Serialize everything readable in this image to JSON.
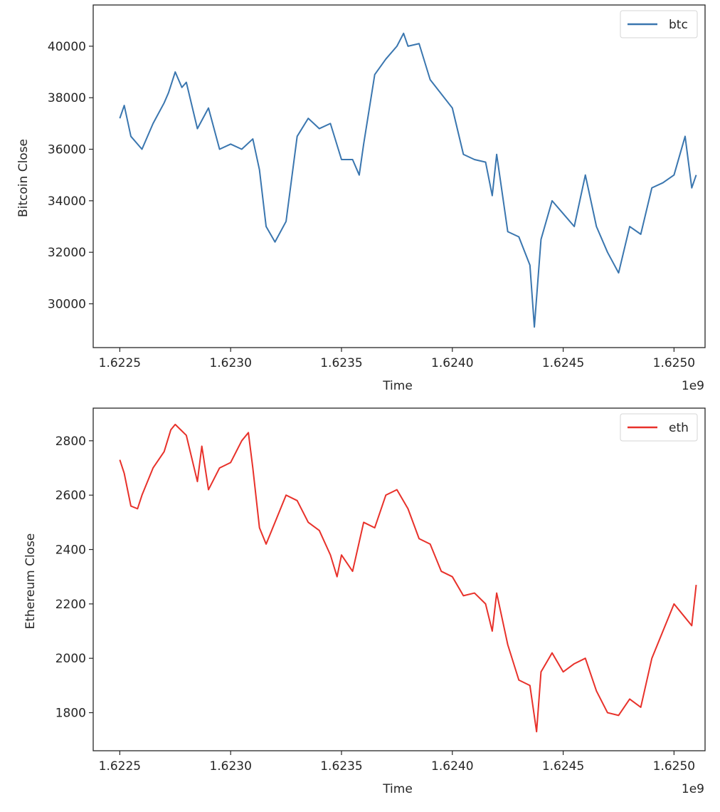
{
  "chart_data": [
    {
      "type": "line",
      "xlabel": "Time",
      "ylabel": "Bitcoin Close",
      "offset_label": "1e9",
      "x_ticks": [
        "1.6225",
        "1.6230",
        "1.6235",
        "1.6240",
        "1.6245",
        "1.6250"
      ],
      "y_ticks": [
        "30000",
        "32000",
        "34000",
        "36000",
        "38000",
        "40000"
      ],
      "xlim": [
        1.62238,
        1.62514
      ],
      "ylim": [
        28300,
        41600
      ],
      "legend_position": "top-right",
      "color": "#3a76af",
      "series": [
        {
          "name": "btc",
          "x": [
            1.6225,
            1.62252,
            1.62255,
            1.6226,
            1.62265,
            1.6227,
            1.62272,
            1.62275,
            1.62278,
            1.6228,
            1.62285,
            1.6229,
            1.62295,
            1.623,
            1.62305,
            1.6231,
            1.62313,
            1.62316,
            1.6232,
            1.62325,
            1.6233,
            1.62335,
            1.6234,
            1.62345,
            1.6235,
            1.62355,
            1.62358,
            1.6236,
            1.62365,
            1.6237,
            1.62375,
            1.62378,
            1.6238,
            1.62385,
            1.6239,
            1.624,
            1.62405,
            1.6241,
            1.62415,
            1.62418,
            1.6242,
            1.62425,
            1.6243,
            1.62435,
            1.62437,
            1.6244,
            1.62445,
            1.6245,
            1.62455,
            1.6246,
            1.62465,
            1.6247,
            1.62475,
            1.6248,
            1.62485,
            1.6249,
            1.62495,
            1.625,
            1.62505,
            1.62508,
            1.6251
          ],
          "y": [
            37200,
            37700,
            36500,
            36000,
            37000,
            37800,
            38200,
            39000,
            38400,
            38600,
            36800,
            37600,
            36000,
            36200,
            36000,
            36400,
            35200,
            33000,
            32400,
            33200,
            36500,
            37200,
            36800,
            37000,
            35600,
            35600,
            35000,
            36200,
            38900,
            39500,
            40000,
            40500,
            40000,
            40100,
            38700,
            37600,
            35800,
            35600,
            35500,
            34200,
            35800,
            32800,
            32600,
            31500,
            29100,
            32500,
            34000,
            33500,
            33000,
            35000,
            33000,
            32000,
            31200,
            33000,
            32700,
            34500,
            34700,
            35000,
            36500,
            34500,
            35000
          ]
        }
      ]
    },
    {
      "type": "line",
      "xlabel": "Time",
      "ylabel": "Ethereum Close",
      "offset_label": "1e9",
      "x_ticks": [
        "1.6225",
        "1.6230",
        "1.6235",
        "1.6240",
        "1.6245",
        "1.6250"
      ],
      "y_ticks": [
        "1800",
        "2000",
        "2200",
        "2400",
        "2600",
        "2800"
      ],
      "xlim": [
        1.62238,
        1.62514
      ],
      "ylim": [
        1660,
        2920
      ],
      "legend_position": "top-right",
      "color": "#e8312a",
      "series": [
        {
          "name": "eth",
          "x": [
            1.6225,
            1.62252,
            1.62255,
            1.62258,
            1.6226,
            1.62265,
            1.6227,
            1.62273,
            1.62275,
            1.6228,
            1.62285,
            1.62287,
            1.6229,
            1.62295,
            1.623,
            1.62305,
            1.62308,
            1.6231,
            1.62313,
            1.62316,
            1.6232,
            1.62325,
            1.6233,
            1.62335,
            1.6234,
            1.62345,
            1.62348,
            1.6235,
            1.62355,
            1.6236,
            1.62365,
            1.6237,
            1.62375,
            1.6238,
            1.62385,
            1.6239,
            1.62395,
            1.624,
            1.62405,
            1.6241,
            1.62415,
            1.62418,
            1.6242,
            1.62425,
            1.6243,
            1.62435,
            1.62438,
            1.6244,
            1.62445,
            1.6245,
            1.62455,
            1.6246,
            1.62465,
            1.6247,
            1.62475,
            1.6248,
            1.62485,
            1.6249,
            1.62495,
            1.625,
            1.62505,
            1.62508,
            1.6251
          ],
          "y": [
            2730,
            2680,
            2560,
            2550,
            2600,
            2700,
            2760,
            2840,
            2860,
            2820,
            2650,
            2780,
            2620,
            2700,
            2720,
            2800,
            2830,
            2700,
            2480,
            2420,
            2500,
            2600,
            2580,
            2500,
            2470,
            2380,
            2300,
            2380,
            2320,
            2500,
            2480,
            2600,
            2620,
            2550,
            2440,
            2420,
            2320,
            2300,
            2230,
            2240,
            2200,
            2100,
            2240,
            2050,
            1920,
            1900,
            1730,
            1950,
            2020,
            1950,
            1980,
            2000,
            1880,
            1800,
            1790,
            1850,
            1820,
            2000,
            2100,
            2200,
            2150,
            2120,
            2270
          ]
        }
      ]
    }
  ]
}
